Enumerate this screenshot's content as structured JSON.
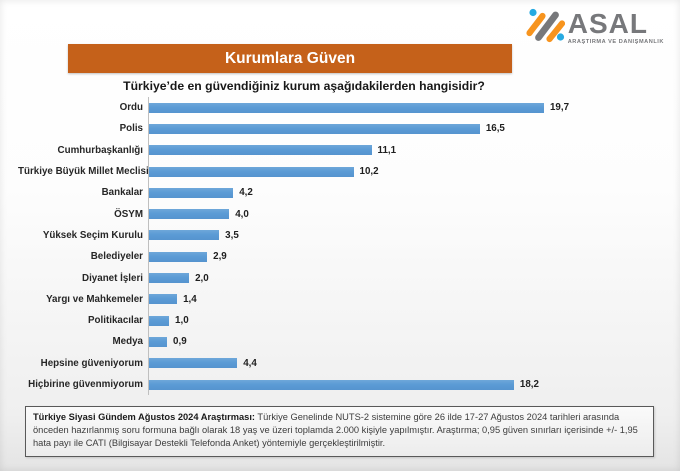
{
  "logo": {
    "name": "ASAL",
    "tagline": "ARAŞTIRMA VE DANIŞMANLIK",
    "colors": {
      "orange": "#f7941e",
      "gray": "#77787b",
      "blue": "#27aae1"
    }
  },
  "banner": {
    "title": "Kurumlara Güven",
    "bg": "#c5611a"
  },
  "question": "Türkiye’de en güvendiğiniz kurum aşağıdakilerden hangisidir?",
  "chart_data": {
    "type": "bar",
    "orientation": "horizontal",
    "title": "Kurumlara Güven",
    "question": "Türkiye’de en güvendiğiniz kurum aşağıdakilerden hangisidir?",
    "categories": [
      "Ordu",
      "Polis",
      "Cumhurbaşkanlığı",
      "Türkiye Büyük Millet Meclisi",
      "Bankalar",
      "ÖSYM",
      "Yüksek Seçim Kurulu",
      "Belediyeler",
      "Diyanet İşleri",
      "Yargı ve Mahkemeler",
      "Politikacılar",
      "Medya",
      "Hepsine güveniyorum",
      "Hiçbirine güvenmiyorum"
    ],
    "values": [
      19.7,
      16.5,
      11.1,
      10.2,
      4.2,
      4.0,
      3.5,
      2.9,
      2.0,
      1.4,
      1.0,
      0.9,
      4.4,
      18.2
    ],
    "value_labels": [
      "19,7",
      "16,5",
      "11,1",
      "10,2",
      "4,2",
      "4,0",
      "3,5",
      "2,9",
      "2,0",
      "1,4",
      "1,0",
      "0,9",
      "4,4",
      "18,2"
    ],
    "bar_color": "#5b9bd5",
    "xlim": [
      0,
      20
    ],
    "grid": false,
    "legend": false
  },
  "footnote": {
    "bold": "Türkiye Siyasi Gündem Ağustos 2024 Araştırması:",
    "text": " Türkiye Genelinde NUTS-2 sistemine göre 26 ilde 17-27 Ağustos 2024 tarihleri arasında önceden hazırlanmış soru formuna bağlı olarak 18 yaş ve üzeri toplamda 2.000 kişiyle yapılmıştır. Araştırma; 0,95 güven sınırları içerisinde +/- 1,95 hata payı ile CATI (Bilgisayar Destekli Telefonda Anket) yöntemiyle gerçekleştirilmiştir."
  }
}
